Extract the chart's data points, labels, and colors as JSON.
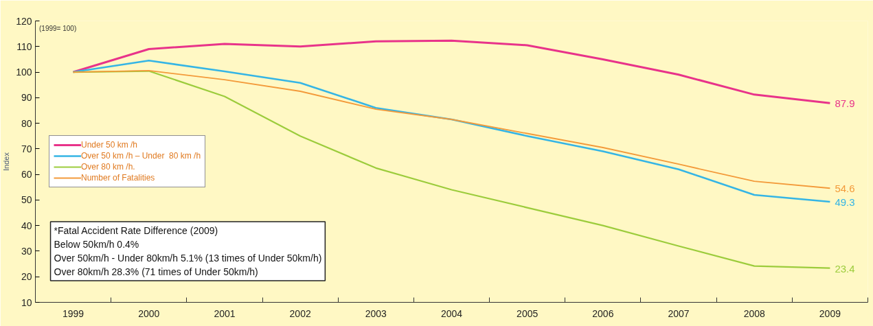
{
  "chart_data": {
    "type": "line",
    "ylabel": "Index",
    "categories": [
      "1999",
      "2000",
      "2001",
      "2002",
      "2003",
      "2004",
      "2005",
      "2006",
      "2007",
      "2008",
      "2009"
    ],
    "series": [
      {
        "name": "Under 50 km /h",
        "color": "#e8338a",
        "values": [
          100,
          109,
          111,
          110,
          112,
          112.3,
          110.5,
          105,
          99,
          91.2,
          87.9
        ],
        "value_labels": [
          null,
          null,
          null,
          null,
          null,
          null,
          null,
          null,
          null,
          null,
          "87.9"
        ]
      },
      {
        "name": "Over 50 km /h – Under  80 km /h",
        "color": "#35b5e5",
        "values": [
          100,
          104.5,
          100.3,
          95.8,
          86,
          81.5,
          75,
          69,
          62,
          52,
          49.3
        ],
        "value_labels": [
          null,
          null,
          null,
          null,
          null,
          null,
          null,
          null,
          null,
          null,
          "49.3"
        ]
      },
      {
        "name": "Over 80 km /h.",
        "color": "#9ccc3c",
        "values": [
          100,
          100.4,
          90.5,
          75,
          62.5,
          54,
          47,
          40,
          32,
          24.2,
          23.4
        ],
        "value_labels": [
          null,
          null,
          null,
          null,
          null,
          null,
          null,
          null,
          null,
          null,
          "23.4"
        ]
      },
      {
        "name": "Number of Fatalities",
        "color": "#f39a3a",
        "values": [
          100,
          100.6,
          97,
          92.5,
          85.5,
          81.5,
          76,
          70.5,
          64,
          57.3,
          54.6
        ],
        "value_labels": [
          null,
          null,
          null,
          null,
          null,
          null,
          null,
          null,
          null,
          null,
          "54.6"
        ]
      }
    ],
    "ylim": [
      10,
      120
    ],
    "yticks": [
      10,
      20,
      30,
      40,
      50,
      60,
      70,
      80,
      90,
      100,
      110,
      120
    ],
    "grid": false,
    "legend": "left",
    "marker": "none",
    "line_style": "solid",
    "annotations": [
      "(1999= 100)",
      "*Fatal Accident Rate Difference (2009)",
      "Below 50km/h 0.4%",
      "Over 50km/h - Under 80km/h 5.1% (13 times of Under 50km/h)",
      "Over 80km/h 28.3% (71 times of Under 50km/h)"
    ]
  }
}
